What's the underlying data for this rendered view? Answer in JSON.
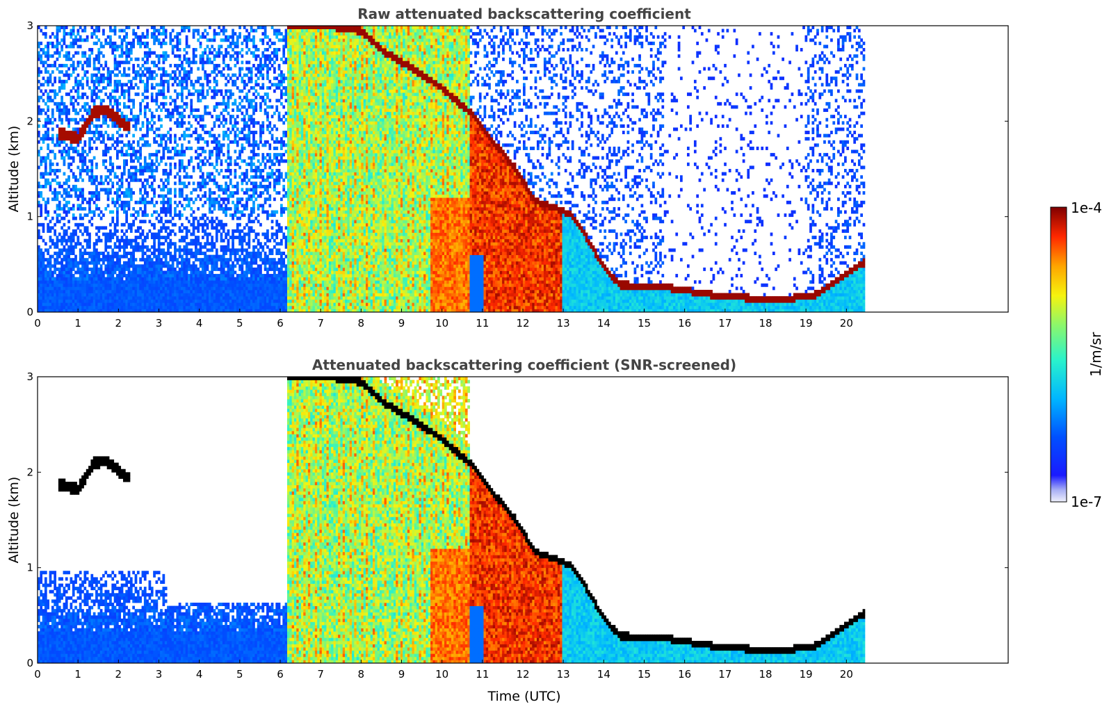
{
  "chart_data": [
    {
      "type": "heatmap",
      "title": "Raw attenuated backscattering coefficient",
      "xlabel": "",
      "ylabel": "Altitude (km)",
      "xlim": [
        0,
        24
      ],
      "ylim": [
        0,
        3
      ],
      "x_ticks": [
        "0",
        "1",
        "2",
        "3",
        "4",
        "5",
        "6",
        "7",
        "8",
        "9",
        "10",
        "11",
        "12",
        "13",
        "14",
        "15",
        "16",
        "17",
        "18",
        "19",
        "20"
      ],
      "y_ticks": [
        "0",
        "1",
        "2",
        "3"
      ],
      "data_end_time": 20.45,
      "screened": false,
      "cloud_base_km": [
        [
          0.5,
          1.88
        ],
        [
          1.0,
          1.82
        ],
        [
          1.4,
          2.1
        ],
        [
          1.7,
          2.12
        ],
        [
          2.2,
          1.95
        ],
        [
          7.2,
          3.0
        ],
        [
          8.0,
          2.95
        ],
        [
          8.6,
          2.72
        ],
        [
          9.3,
          2.55
        ],
        [
          10.0,
          2.35
        ],
        [
          10.8,
          2.05
        ],
        [
          11.3,
          1.75
        ],
        [
          11.8,
          1.5
        ],
        [
          12.3,
          1.15
        ],
        [
          12.8,
          1.08
        ],
        [
          13.2,
          1.0
        ],
        [
          13.6,
          0.75
        ],
        [
          14.0,
          0.45
        ],
        [
          14.4,
          0.27
        ],
        [
          15.0,
          0.26
        ],
        [
          15.6,
          0.24
        ],
        [
          16.2,
          0.2
        ],
        [
          16.8,
          0.16
        ],
        [
          17.4,
          0.14
        ],
        [
          18.0,
          0.12
        ],
        [
          18.6,
          0.13
        ],
        [
          19.2,
          0.16
        ],
        [
          19.7,
          0.3
        ],
        [
          20.4,
          0.5
        ]
      ],
      "regimes": [
        {
          "from": 0.0,
          "to": 6.2,
          "level": "low aerosol / noise"
        },
        {
          "from": 6.2,
          "to": 10.7,
          "level": "precipitation fall streaks"
        },
        {
          "from": 10.9,
          "to": 13.0,
          "level": "strong precipitation"
        },
        {
          "from": 13.0,
          "to": 20.45,
          "level": "low cloud layer"
        }
      ]
    },
    {
      "type": "heatmap",
      "title": "Attenuated backscattering coefficient (SNR-screened)",
      "xlabel": "Time (UTC)",
      "ylabel": "Altitude (km)",
      "xlim": [
        0,
        24
      ],
      "ylim": [
        0,
        3
      ],
      "x_ticks": [
        "0",
        "1",
        "2",
        "3",
        "4",
        "5",
        "6",
        "7",
        "8",
        "9",
        "10",
        "11",
        "12",
        "13",
        "14",
        "15",
        "16",
        "17",
        "18",
        "19",
        "20"
      ],
      "y_ticks": [
        "0",
        "1",
        "2",
        "3"
      ],
      "data_end_time": 20.45,
      "screened": true
    }
  ],
  "colorbar": {
    "label": "1/m/sr",
    "max_label": "1e-4",
    "min_label": "1e-7",
    "scale": "log",
    "colormap": "jet"
  }
}
